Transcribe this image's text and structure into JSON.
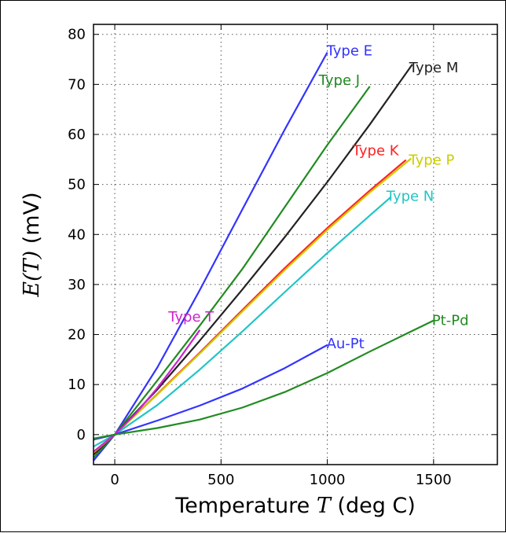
{
  "chart_data": {
    "type": "line",
    "title": "",
    "xlabel": {
      "prefix": "Temperature ",
      "math": "T",
      "suffix": " (deg C)"
    },
    "ylabel": {
      "math": "E(T)",
      "suffix": " (mV)"
    },
    "xlim": [
      -100,
      1800
    ],
    "ylim": [
      -6,
      82
    ],
    "xticks": [
      0,
      500,
      1000,
      1500
    ],
    "yticks": [
      0,
      10,
      20,
      30,
      40,
      50,
      60,
      70,
      80
    ],
    "grid": true,
    "series": [
      {
        "name": "Type E",
        "color": "#3333ff",
        "x": [
          -100,
          0,
          200,
          400,
          600,
          800,
          1000
        ],
        "y": [
          -5.2,
          0,
          13.4,
          28.9,
          45.0,
          61.0,
          76.4
        ]
      },
      {
        "name": "Type J",
        "color": "#228b22",
        "x": [
          -100,
          0,
          200,
          400,
          600,
          800,
          1000,
          1200
        ],
        "y": [
          -4.6,
          0,
          10.8,
          21.8,
          33.1,
          45.5,
          57.9,
          69.6
        ]
      },
      {
        "name": "Type M",
        "color": "#222222",
        "x": [
          -100,
          0,
          200,
          400,
          600,
          800,
          1000,
          1200,
          1400
        ],
        "y": [
          -4.0,
          0,
          9.0,
          18.8,
          29.0,
          39.5,
          50.5,
          62.0,
          74.0
        ]
      },
      {
        "name": "Type K",
        "color": "#ff2222",
        "x": [
          -100,
          0,
          200,
          400,
          600,
          800,
          1000,
          1200,
          1370
        ],
        "y": [
          -3.6,
          0,
          8.1,
          16.4,
          24.9,
          33.3,
          41.3,
          48.8,
          54.9
        ]
      },
      {
        "name": "Type P",
        "color": "#cccc00",
        "x": [
          -100,
          0,
          200,
          400,
          600,
          800,
          1000,
          1200,
          1395
        ],
        "y": [
          -3.6,
          0,
          8.0,
          16.2,
          24.6,
          32.9,
          40.9,
          48.4,
          55.2
        ]
      },
      {
        "name": "Type N",
        "color": "#22c5c5",
        "x": [
          -100,
          0,
          200,
          400,
          600,
          800,
          1000,
          1200,
          1300
        ],
        "y": [
          -2.4,
          0,
          5.9,
          13.0,
          20.6,
          28.5,
          36.3,
          43.8,
          47.5
        ]
      },
      {
        "name": "Type T",
        "color": "#cc22cc",
        "x": [
          -100,
          0,
          100,
          200,
          300,
          400
        ],
        "y": [
          -3.4,
          0,
          4.3,
          9.3,
          14.9,
          20.9
        ]
      },
      {
        "name": "Au-Pt",
        "color": "#3333ff",
        "x": [
          -100,
          0,
          200,
          400,
          600,
          800,
          1000
        ],
        "y": [
          -1.0,
          0,
          2.8,
          5.8,
          9.2,
          13.3,
          17.9
        ]
      },
      {
        "name": "Pt-Pd",
        "color": "#228b22",
        "x": [
          -100,
          0,
          200,
          400,
          600,
          800,
          1000,
          1200,
          1500
        ],
        "y": [
          -0.8,
          0,
          1.3,
          3.0,
          5.4,
          8.5,
          12.3,
          16.6,
          22.8
        ]
      }
    ]
  }
}
